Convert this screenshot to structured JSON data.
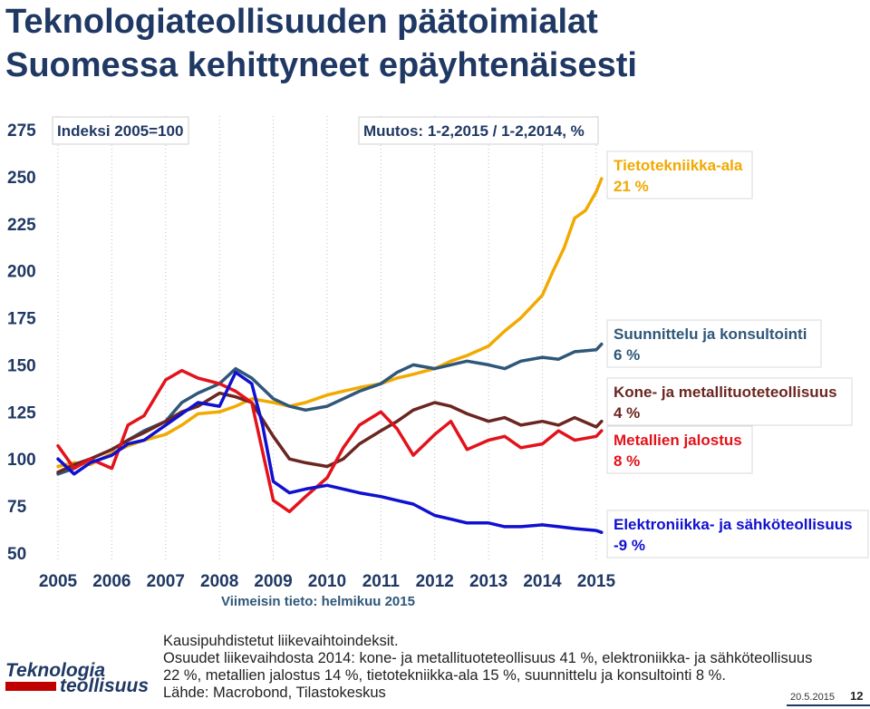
{
  "title": {
    "line1": "Teknologiateollisuuden päätoimialat",
    "line2": "Suomessa kehittyneet epäyhtenäisesti"
  },
  "colors": {
    "title": "#1f3864",
    "axis_text": "#1f3864",
    "grid": "#bfbfbf",
    "tieto": "#f2a900",
    "suunnittelu": "#2f5779",
    "kone": "#6b2621",
    "metalli": "#e3121b",
    "elektroniikka": "#1010d0"
  },
  "chart_data": {
    "type": "line",
    "index_label": "Indeksi 2005=100",
    "change_label": "Muutos: 1-2,2015 / 1-2,2014, %",
    "note": "Viimeisin tieto: helmikuu 2015",
    "ylim": [
      50,
      275
    ],
    "yticks": [
      "275",
      "250",
      "225",
      "200",
      "175",
      "150",
      "125",
      "100",
      "75",
      "50"
    ],
    "xlim": [
      2005,
      2015.17
    ],
    "xticks": [
      "2005",
      "2006",
      "2007",
      "2008",
      "2009",
      "2010",
      "2011",
      "2012",
      "2013",
      "2014",
      "2015"
    ],
    "grid": "vertical",
    "series": [
      {
        "key": "tieto",
        "name": "Tietotekniikka-ala",
        "change": "21 %",
        "points": [
          [
            2005,
            96
          ],
          [
            2005.3,
            98
          ],
          [
            2005.6,
            97
          ],
          [
            2006,
            103
          ],
          [
            2006.3,
            107
          ],
          [
            2006.6,
            110
          ],
          [
            2007,
            113
          ],
          [
            2007.3,
            118
          ],
          [
            2007.6,
            124
          ],
          [
            2008,
            125
          ],
          [
            2008.3,
            128
          ],
          [
            2008.6,
            132
          ],
          [
            2009,
            130
          ],
          [
            2009.3,
            128
          ],
          [
            2009.6,
            130
          ],
          [
            2010,
            134
          ],
          [
            2010.3,
            136
          ],
          [
            2010.6,
            138
          ],
          [
            2011,
            140
          ],
          [
            2011.3,
            143
          ],
          [
            2011.6,
            145
          ],
          [
            2012,
            148
          ],
          [
            2012.3,
            152
          ],
          [
            2012.6,
            155
          ],
          [
            2013,
            160
          ],
          [
            2013.3,
            168
          ],
          [
            2013.6,
            175
          ],
          [
            2014,
            187
          ],
          [
            2014.2,
            200
          ],
          [
            2014.4,
            212
          ],
          [
            2014.6,
            228
          ],
          [
            2014.8,
            232
          ],
          [
            2015,
            242
          ],
          [
            2015.1,
            249
          ]
        ]
      },
      {
        "key": "suunnittelu",
        "name": "Suunnittelu ja konsultointi",
        "change": "6 %",
        "points": [
          [
            2005,
            92
          ],
          [
            2005.3,
            95
          ],
          [
            2005.6,
            100
          ],
          [
            2006,
            105
          ],
          [
            2006.3,
            110
          ],
          [
            2006.6,
            115
          ],
          [
            2007,
            120
          ],
          [
            2007.3,
            130
          ],
          [
            2007.6,
            135
          ],
          [
            2008,
            140
          ],
          [
            2008.3,
            148
          ],
          [
            2008.6,
            143
          ],
          [
            2009,
            132
          ],
          [
            2009.3,
            128
          ],
          [
            2009.6,
            126
          ],
          [
            2010,
            128
          ],
          [
            2010.3,
            132
          ],
          [
            2010.6,
            136
          ],
          [
            2011,
            140
          ],
          [
            2011.3,
            146
          ],
          [
            2011.6,
            150
          ],
          [
            2012,
            148
          ],
          [
            2012.3,
            150
          ],
          [
            2012.6,
            152
          ],
          [
            2013,
            150
          ],
          [
            2013.3,
            148
          ],
          [
            2013.6,
            152
          ],
          [
            2014,
            154
          ],
          [
            2014.3,
            153
          ],
          [
            2014.6,
            157
          ],
          [
            2015,
            158
          ],
          [
            2015.1,
            161
          ]
        ]
      },
      {
        "key": "kone",
        "name": "Kone- ja metallituoteteollisuus",
        "change": "4 %",
        "points": [
          [
            2005,
            93
          ],
          [
            2005.3,
            97
          ],
          [
            2005.6,
            100
          ],
          [
            2006,
            105
          ],
          [
            2006.3,
            110
          ],
          [
            2006.6,
            114
          ],
          [
            2007,
            120
          ],
          [
            2007.3,
            125
          ],
          [
            2007.6,
            128
          ],
          [
            2008,
            135
          ],
          [
            2008.3,
            133
          ],
          [
            2008.6,
            130
          ],
          [
            2009,
            112
          ],
          [
            2009.3,
            100
          ],
          [
            2009.6,
            98
          ],
          [
            2010,
            96
          ],
          [
            2010.3,
            100
          ],
          [
            2010.6,
            108
          ],
          [
            2011,
            115
          ],
          [
            2011.3,
            120
          ],
          [
            2011.6,
            126
          ],
          [
            2012,
            130
          ],
          [
            2012.3,
            128
          ],
          [
            2012.6,
            124
          ],
          [
            2013,
            120
          ],
          [
            2013.3,
            122
          ],
          [
            2013.6,
            118
          ],
          [
            2014,
            120
          ],
          [
            2014.3,
            118
          ],
          [
            2014.6,
            122
          ],
          [
            2015,
            117
          ],
          [
            2015.1,
            120
          ]
        ]
      },
      {
        "key": "metalli",
        "name": "Metallien jalostus",
        "change": "8 %",
        "points": [
          [
            2005,
            107
          ],
          [
            2005.3,
            95
          ],
          [
            2005.6,
            100
          ],
          [
            2006,
            95
          ],
          [
            2006.3,
            118
          ],
          [
            2006.6,
            123
          ],
          [
            2007,
            142
          ],
          [
            2007.3,
            147
          ],
          [
            2007.6,
            143
          ],
          [
            2008,
            140
          ],
          [
            2008.3,
            136
          ],
          [
            2008.6,
            130
          ],
          [
            2009,
            78
          ],
          [
            2009.3,
            72
          ],
          [
            2009.6,
            80
          ],
          [
            2010,
            90
          ],
          [
            2010.3,
            106
          ],
          [
            2010.6,
            118
          ],
          [
            2011,
            125
          ],
          [
            2011.3,
            116
          ],
          [
            2011.6,
            102
          ],
          [
            2012,
            113
          ],
          [
            2012.3,
            120
          ],
          [
            2012.6,
            105
          ],
          [
            2013,
            110
          ],
          [
            2013.3,
            112
          ],
          [
            2013.6,
            106
          ],
          [
            2014,
            108
          ],
          [
            2014.3,
            115
          ],
          [
            2014.6,
            110
          ],
          [
            2015,
            112
          ],
          [
            2015.1,
            115
          ]
        ]
      },
      {
        "key": "elektroniikka",
        "name": "Elektroniikka- ja sähköteollisuus",
        "change": "-9 %",
        "points": [
          [
            2005,
            100
          ],
          [
            2005.3,
            92
          ],
          [
            2005.6,
            98
          ],
          [
            2006,
            102
          ],
          [
            2006.3,
            108
          ],
          [
            2006.6,
            110
          ],
          [
            2007,
            118
          ],
          [
            2007.3,
            124
          ],
          [
            2007.6,
            130
          ],
          [
            2008,
            128
          ],
          [
            2008.3,
            146
          ],
          [
            2008.6,
            140
          ],
          [
            2008.8,
            118
          ],
          [
            2009,
            88
          ],
          [
            2009.3,
            82
          ],
          [
            2009.6,
            84
          ],
          [
            2010,
            86
          ],
          [
            2010.3,
            84
          ],
          [
            2010.6,
            82
          ],
          [
            2011,
            80
          ],
          [
            2011.3,
            78
          ],
          [
            2011.6,
            76
          ],
          [
            2012,
            70
          ],
          [
            2012.3,
            68
          ],
          [
            2012.6,
            66
          ],
          [
            2013,
            66
          ],
          [
            2013.3,
            64
          ],
          [
            2013.6,
            64
          ],
          [
            2014,
            65
          ],
          [
            2014.3,
            64
          ],
          [
            2014.6,
            63
          ],
          [
            2015,
            62
          ],
          [
            2015.1,
            61
          ]
        ]
      }
    ]
  },
  "footer": {
    "line1": "Kausipuhdistetut liikevaihtoindeksit.",
    "line2": "Osuudet liikevaihdosta 2014: kone- ja metallituoteteollisuus 41 %, elektroniikka- ja sähköteollisuus",
    "line3": "22 %, metallien jalostus 14 %, tietotekniikka-ala 15 %, suunnittelu ja konsultointi 8 %.",
    "line4": "Lähde: Macrobond, Tilastokeskus"
  },
  "logo": {
    "word1": "Teknologia",
    "word2": "teollisuus"
  },
  "date": "20.5.2015",
  "page_number": "12"
}
